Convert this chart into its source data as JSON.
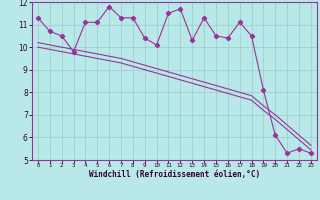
{
  "xlabel": "Windchill (Refroidissement éolien,°C)",
  "bg_color": "#b8e8e8",
  "line_color": "#993399",
  "x": [
    0,
    1,
    2,
    3,
    4,
    5,
    6,
    7,
    8,
    9,
    10,
    11,
    12,
    13,
    14,
    15,
    16,
    17,
    18,
    19,
    20,
    21,
    22,
    23
  ],
  "y_main": [
    11.3,
    10.7,
    10.5,
    9.8,
    11.1,
    11.1,
    11.8,
    11.3,
    11.3,
    10.4,
    10.1,
    11.5,
    11.7,
    10.3,
    11.3,
    10.5,
    10.4,
    11.1,
    10.5,
    8.1,
    6.1,
    5.3,
    5.5,
    5.3
  ],
  "y_upper": [
    10.2,
    10.1,
    10.0,
    9.9,
    9.8,
    9.7,
    9.6,
    9.5,
    9.35,
    9.2,
    9.05,
    8.9,
    8.75,
    8.6,
    8.45,
    8.3,
    8.15,
    8.0,
    7.85,
    7.4,
    7.0,
    6.55,
    6.1,
    5.65
  ],
  "y_lower": [
    10.0,
    9.9,
    9.8,
    9.7,
    9.6,
    9.5,
    9.4,
    9.3,
    9.15,
    9.0,
    8.85,
    8.7,
    8.55,
    8.4,
    8.25,
    8.1,
    7.95,
    7.8,
    7.65,
    7.2,
    6.8,
    6.35,
    5.9,
    5.45
  ],
  "ylim": [
    5,
    12
  ],
  "yticks": [
    5,
    6,
    7,
    8,
    9,
    10,
    11,
    12
  ],
  "xlim": [
    -0.5,
    23.5
  ],
  "xticks": [
    0,
    1,
    2,
    3,
    4,
    5,
    6,
    7,
    8,
    9,
    10,
    11,
    12,
    13,
    14,
    15,
    16,
    17,
    18,
    19,
    20,
    21,
    22,
    23
  ]
}
